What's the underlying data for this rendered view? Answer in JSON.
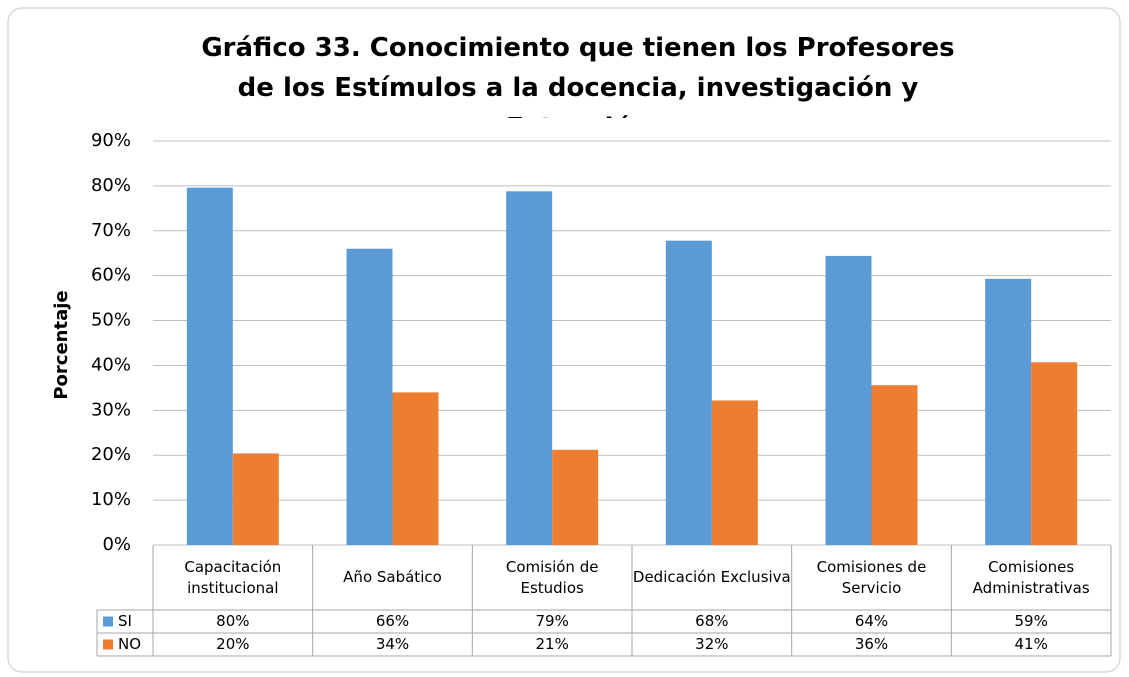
{
  "chart_data": {
    "type": "bar",
    "title": "Gráfico 33. Conocimiento que tienen los Profesores de los Estímulos a la docencia, investigación y Extensión",
    "y_label": "Porcentaje",
    "categories": [
      "Capacitación institucional",
      "Año Sabático",
      "Comisión de Estudios",
      "Dedicación Exclusiva",
      "Comisiones de Servicio",
      "Comisiones Administrativas"
    ],
    "series": [
      {
        "name": "SI",
        "color": "#5b9bd5",
        "values": [
          79.6,
          66,
          78.8,
          67.8,
          64.4,
          59.3
        ],
        "value_labels": [
          "80%",
          "66%",
          "79%",
          "68%",
          "64%",
          "59%"
        ]
      },
      {
        "name": "NO",
        "color": "#ed7d31",
        "values": [
          20.4,
          34,
          21.2,
          32.2,
          35.6,
          40.7
        ],
        "value_labels": [
          "20%",
          "34%",
          "21%",
          "32%",
          "36%",
          "41%"
        ]
      }
    ],
    "ylim": [
      0,
      90
    ],
    "yticks": [
      {
        "value": 0,
        "label": "0%"
      },
      {
        "value": 10,
        "label": "10%"
      },
      {
        "value": 20,
        "label": "20%"
      },
      {
        "value": 30,
        "label": "30%"
      },
      {
        "value": 40,
        "label": "40%"
      },
      {
        "value": 50,
        "label": "50%"
      },
      {
        "value": 60,
        "label": "60%"
      },
      {
        "value": 70,
        "label": "70%"
      },
      {
        "value": 80,
        "label": "80%"
      },
      {
        "value": 90,
        "label": "90%"
      }
    ],
    "grid": true
  }
}
